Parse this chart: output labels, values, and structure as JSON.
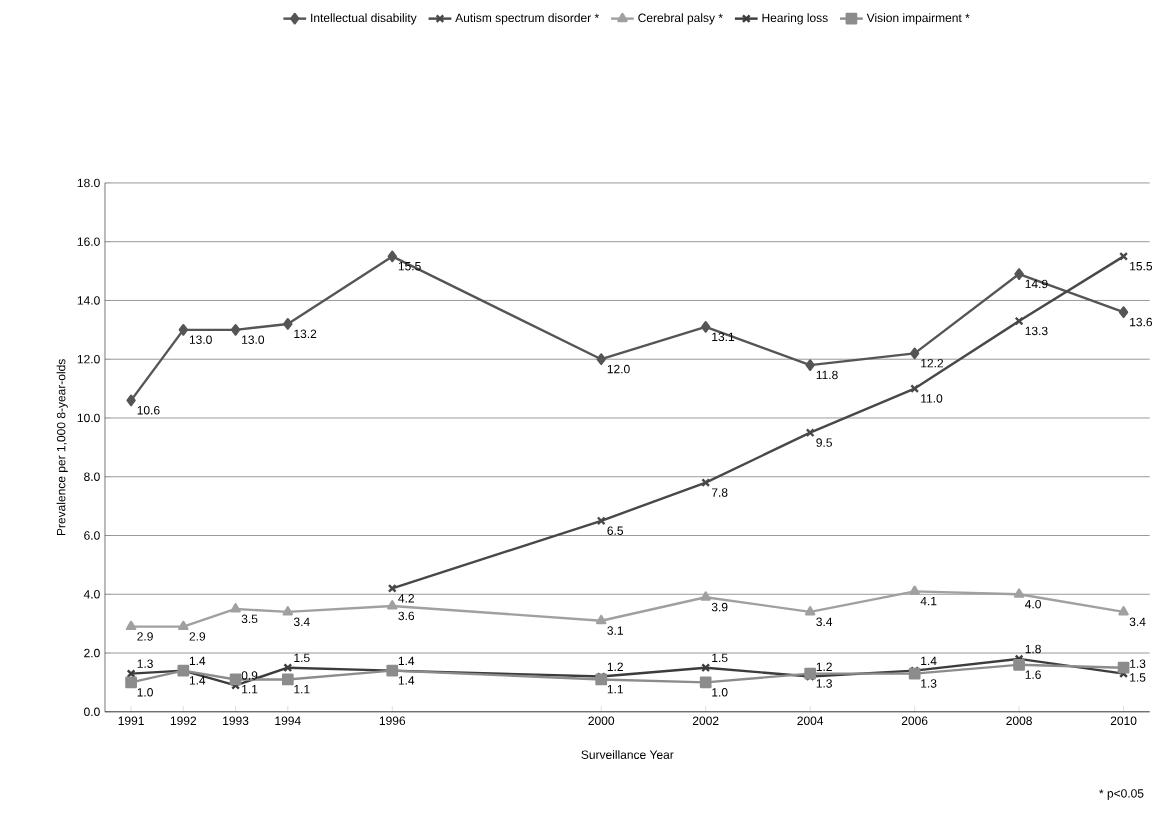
{
  "chart_data": {
    "type": "line",
    "xlabel": "Surveillance Year",
    "ylabel": "Prevalence per 1,000 8-year-olds",
    "x": [
      1991,
      1992,
      1993,
      1994,
      1996,
      2000,
      2002,
      2004,
      2006,
      2008,
      2010
    ],
    "xlim": [
      1990.5,
      2010.5
    ],
    "xticks": [
      1991,
      1992,
      1993,
      1994,
      1996,
      2000,
      2002,
      2004,
      2006,
      2008,
      2010
    ],
    "ylim": [
      0,
      18
    ],
    "yticks": [
      {
        "value": 0,
        "label": "0.0"
      },
      {
        "value": 2,
        "label": "2.0"
      },
      {
        "value": 4,
        "label": "4.0"
      },
      {
        "value": 6,
        "label": "6.0"
      },
      {
        "value": 8,
        "label": "8.0"
      },
      {
        "value": 10,
        "label": "10.0"
      },
      {
        "value": 12,
        "label": "12.0"
      },
      {
        "value": 14,
        "label": "14.0"
      },
      {
        "value": 16,
        "label": "16.0"
      },
      {
        "value": 18,
        "label": "18.0"
      }
    ],
    "grid": "y",
    "legend": "top",
    "line_style": "solid",
    "series": [
      {
        "name": "Intellectual disability",
        "color": "#555555",
        "marker": "diamond",
        "values": [
          10.6,
          13.0,
          13.0,
          13.2,
          15.5,
          12.0,
          13.1,
          11.8,
          12.2,
          14.9,
          13.6
        ],
        "value_labels": [
          "10.6",
          "13.0",
          "13.0",
          "13.2",
          "15.5",
          "12.0",
          "13.1",
          "11.8",
          "12.2",
          "14.9",
          "13.6"
        ]
      },
      {
        "name": "Autism spectrum disorder *",
        "color": "#484848",
        "marker": "cross",
        "values": [
          null,
          null,
          null,
          null,
          4.2,
          6.5,
          7.8,
          9.5,
          11.0,
          13.3,
          15.5
        ],
        "value_labels": [
          null,
          null,
          null,
          null,
          "4.2",
          "6.5",
          "7.8",
          "9.5",
          "11.0",
          "13.3",
          "15.5"
        ]
      },
      {
        "name": "Cerebral palsy *",
        "color": "#a0a0a0",
        "marker": "triangle",
        "values": [
          2.9,
          2.9,
          3.5,
          3.4,
          3.6,
          3.1,
          3.9,
          3.4,
          4.1,
          4.0,
          3.4
        ],
        "value_labels": [
          "2.9",
          "2.9",
          "3.5",
          "3.4",
          "3.6",
          "3.1",
          "3.9",
          "3.4",
          "4.1",
          "4.0",
          "3.4"
        ]
      },
      {
        "name": "Hearing loss",
        "color": "#3c3c3c",
        "marker": "cross",
        "values": [
          1.3,
          1.4,
          0.9,
          1.5,
          1.4,
          1.2,
          1.5,
          1.2,
          1.4,
          1.8,
          1.3
        ],
        "value_labels": [
          "1.3",
          "1.4",
          "0.9",
          "1.5",
          "1.4",
          "1.2",
          "1.5",
          "1.2",
          "1.4",
          "1.8",
          "1.3"
        ]
      },
      {
        "name": "Vision impairment *",
        "color": "#8c8c8c",
        "marker": "square",
        "values": [
          1.0,
          1.4,
          1.1,
          1.1,
          1.4,
          1.1,
          1.0,
          1.3,
          1.3,
          1.6,
          1.5
        ],
        "value_labels": [
          "1.0",
          "1.4",
          "1.1",
          "1.1",
          "1.4",
          "1.1",
          "1.0",
          "1.3",
          "1.3",
          "1.6",
          "1.5"
        ]
      }
    ],
    "annotations": [
      "* p<0.05"
    ]
  }
}
